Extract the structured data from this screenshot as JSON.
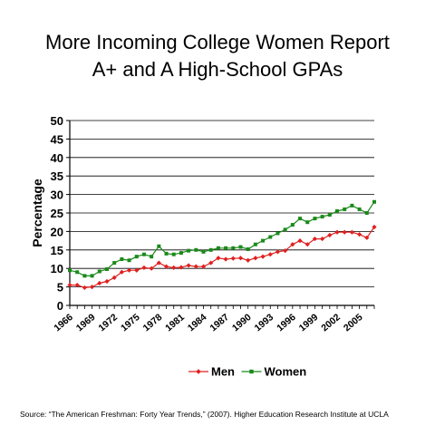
{
  "title_line1": "More Incoming College Women Report",
  "title_line2": "A+ and A High-School GPAs",
  "source": "Source: “The American Freshman: Forty Year Trends,” (2007). Higher Education Research Institute at UCLA",
  "chart_data": {
    "type": "line",
    "title": "More Incoming College Women Report A+ and A High-School GPAs",
    "ylabel": "Percentage",
    "xlabel": "",
    "ylim": [
      0,
      50
    ],
    "xlim": [
      1966,
      2007
    ],
    "grid": true,
    "legend_position": "bottom",
    "y_ticks": [
      0,
      5,
      10,
      15,
      20,
      25,
      30,
      35,
      40,
      45,
      50
    ],
    "x_tick_labels": [
      "1966",
      "1969",
      "1972",
      "1975",
      "1978",
      "1981",
      "1984",
      "1987",
      "1990",
      "1993",
      "1996",
      "1999",
      "2002",
      "2005"
    ],
    "x": [
      1966,
      1967,
      1968,
      1969,
      1970,
      1971,
      1972,
      1973,
      1974,
      1975,
      1976,
      1977,
      1978,
      1979,
      1980,
      1981,
      1982,
      1983,
      1984,
      1985,
      1986,
      1987,
      1988,
      1989,
      1990,
      1991,
      1992,
      1993,
      1994,
      1995,
      1996,
      1997,
      1998,
      1999,
      2000,
      2001,
      2002,
      2003,
      2004,
      2005,
      2006,
      2007
    ],
    "series": [
      {
        "name": "Men",
        "color": "#e02020",
        "marker": "diamond",
        "values": [
          5.5,
          5.5,
          4.8,
          5.0,
          6.0,
          6.5,
          7.5,
          9.0,
          9.5,
          9.5,
          10.2,
          10.0,
          11.5,
          10.5,
          10.2,
          10.3,
          10.8,
          10.5,
          10.5,
          11.5,
          12.8,
          12.5,
          12.7,
          12.8,
          12.2,
          12.8,
          13.2,
          13.8,
          14.5,
          14.8,
          16.5,
          17.5,
          16.5,
          18.0,
          18.0,
          19.0,
          19.8,
          19.8,
          19.8,
          19.2,
          18.3,
          21.2
        ]
      },
      {
        "name": "Women",
        "color": "#1a8a1a",
        "marker": "square",
        "values": [
          9.5,
          9.0,
          8.0,
          8.0,
          9.2,
          9.8,
          11.5,
          12.5,
          12.2,
          13.2,
          13.8,
          13.2,
          16.0,
          14.0,
          13.8,
          14.2,
          14.8,
          15.0,
          14.5,
          15.0,
          15.5,
          15.5,
          15.5,
          15.8,
          15.2,
          16.5,
          17.5,
          18.5,
          19.5,
          20.5,
          21.8,
          23.5,
          22.5,
          23.5,
          24.0,
          24.5,
          25.5,
          26.0,
          27.0,
          26.0,
          25.0,
          28.0
        ]
      }
    ]
  }
}
